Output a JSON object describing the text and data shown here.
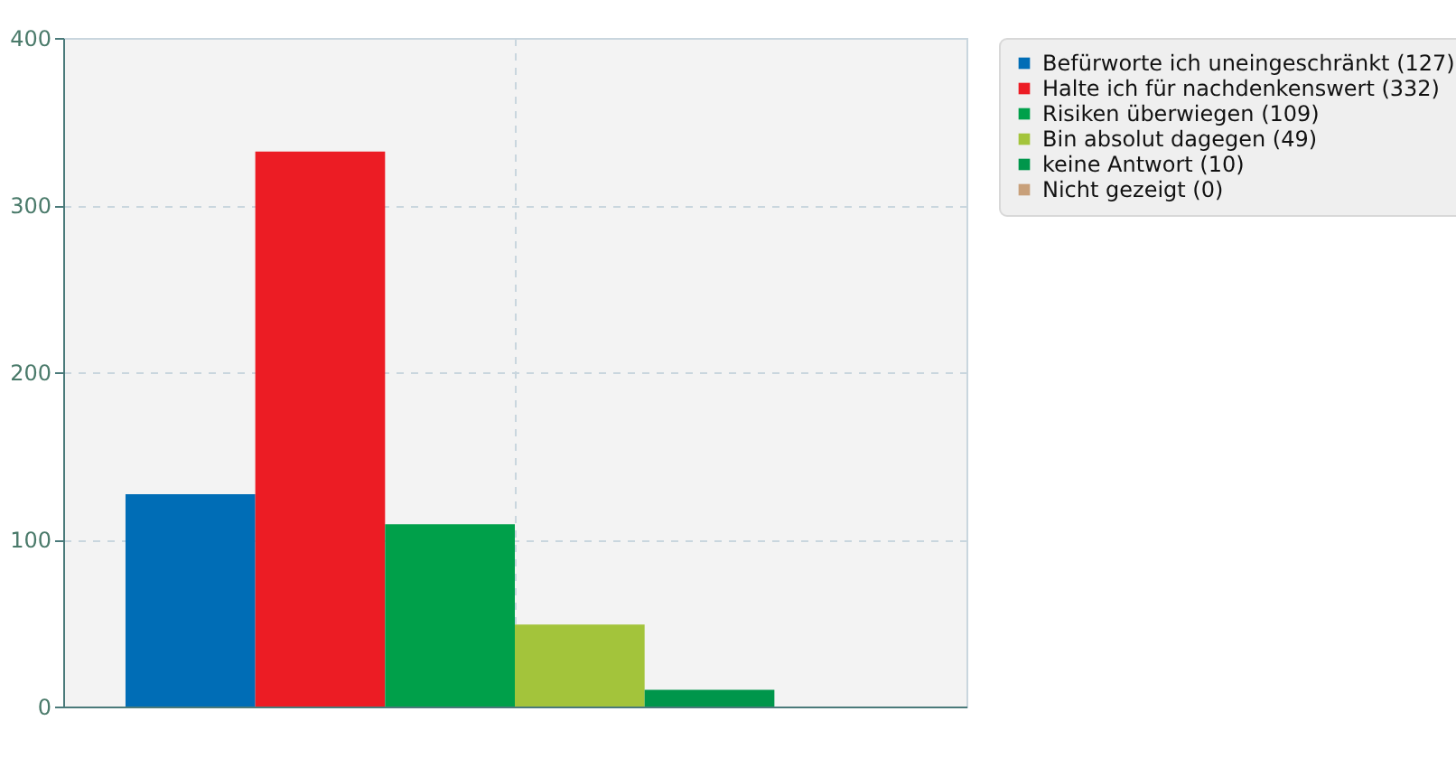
{
  "chart_data": {
    "type": "bar",
    "categories": [
      null
    ],
    "series": [
      {
        "name": "Befürworte ich uneingeschränkt (127)",
        "color": "#006db6",
        "values": [
          127
        ]
      },
      {
        "name": "Halte ich für nachdenkenswert (332)",
        "color": "#ec1c24",
        "values": [
          332
        ]
      },
      {
        "name": "Risiken überwiegen (109)",
        "color": "#00a04a",
        "values": [
          109
        ]
      },
      {
        "name": "Bin absolut dagegen (49)",
        "color": "#a3c43b",
        "values": [
          49
        ]
      },
      {
        "name": "keine Antwort (10)",
        "color": "#00964b",
        "values": [
          10
        ]
      },
      {
        "name": "Nicht gezeigt (0)",
        "color": "#c8a07a",
        "values": [
          0
        ]
      }
    ],
    "ylim": [
      0,
      400
    ],
    "yticks": [
      0,
      100,
      200,
      300,
      400
    ],
    "grid": true,
    "legend": "top right"
  }
}
